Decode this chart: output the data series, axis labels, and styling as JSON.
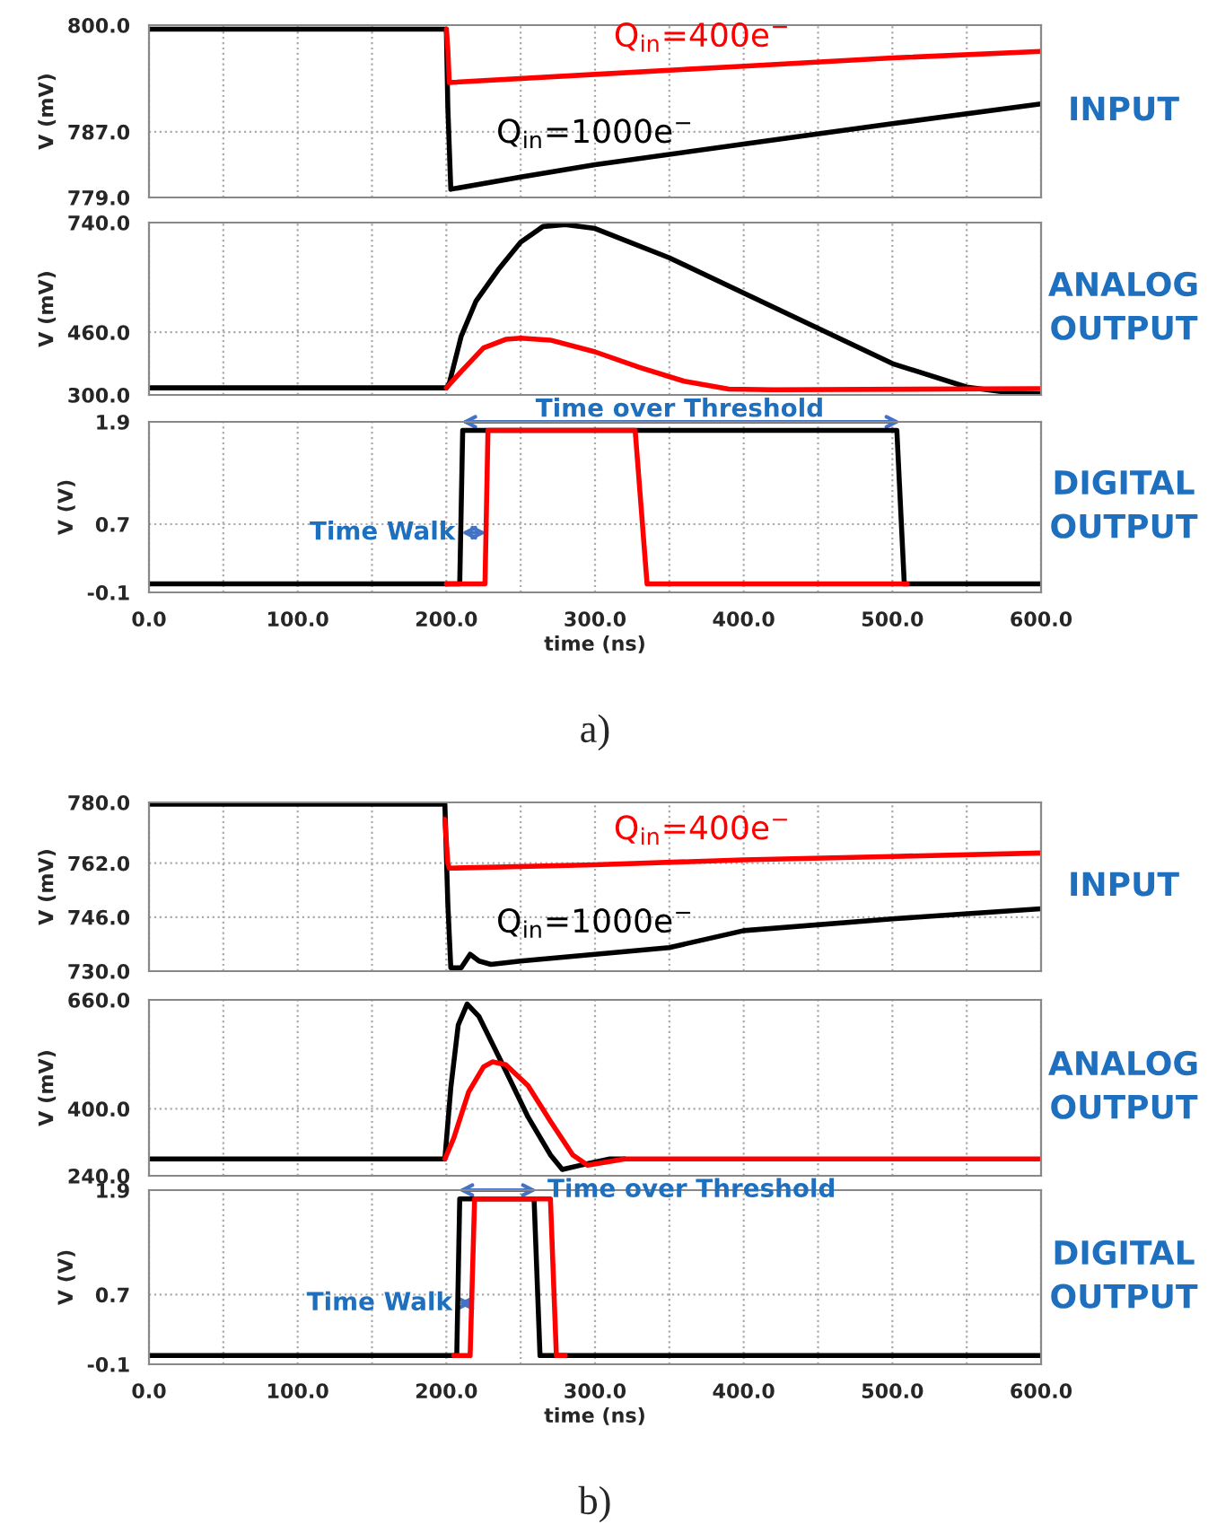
{
  "chart_data": [
    {
      "type": "line",
      "ylabel": "V (mV)",
      "xlim": [
        0,
        600
      ],
      "ylim": [
        779,
        800
      ],
      "tick_labels": "y",
      "grid": true,
      "legend": false,
      "marker": "none",
      "line_style": "solid",
      "xticks": [
        {
          "value": 0,
          "label": null
        },
        {
          "value": 50,
          "label": null
        },
        {
          "value": 100,
          "label": null
        },
        {
          "value": 150,
          "label": null
        },
        {
          "value": 200,
          "label": null
        },
        {
          "value": 250,
          "label": null
        },
        {
          "value": 300,
          "label": null
        },
        {
          "value": 350,
          "label": null
        },
        {
          "value": 400,
          "label": null
        },
        {
          "value": 450,
          "label": null
        },
        {
          "value": 500,
          "label": null
        },
        {
          "value": 550,
          "label": null
        },
        {
          "value": 600,
          "label": null
        }
      ],
      "yticks": [
        {
          "value": 779,
          "label": "779.0"
        },
        {
          "value": 787,
          "label": "787.0"
        },
        {
          "value": 800,
          "label": "800.0"
        }
      ],
      "series": [
        {
          "name": "Q$_{in}$=1000e$^{−}$",
          "color": "#000000",
          "x": [
            0,
            200,
            201,
            203,
            250,
            300,
            400,
            500,
            600
          ],
          "values": [
            799.5,
            799.5,
            790,
            780,
            781.5,
            783,
            785.5,
            788,
            790.4
          ]
        },
        {
          "name": "Q$_{in}$=400e$^{−}$",
          "color": "#ff0000",
          "x": [
            200,
            201,
            202,
            300,
            400,
            500,
            600
          ],
          "values": [
            799.5,
            797,
            793,
            794,
            795,
            796,
            796.8
          ]
        }
      ],
      "annotations": [
        "INPUT"
      ]
    },
    {
      "type": "line",
      "ylabel": "V (mV)",
      "xlim": [
        0,
        600
      ],
      "ylim": [
        300,
        740
      ],
      "tick_labels": "y",
      "grid": true,
      "legend": false,
      "marker": "none",
      "line_style": "solid",
      "xticks": [
        {
          "value": 0,
          "label": null
        },
        {
          "value": 50,
          "label": null
        },
        {
          "value": 100,
          "label": null
        },
        {
          "value": 150,
          "label": null
        },
        {
          "value": 200,
          "label": null
        },
        {
          "value": 250,
          "label": null
        },
        {
          "value": 300,
          "label": null
        },
        {
          "value": 350,
          "label": null
        },
        {
          "value": 400,
          "label": null
        },
        {
          "value": 450,
          "label": null
        },
        {
          "value": 500,
          "label": null
        },
        {
          "value": 550,
          "label": null
        },
        {
          "value": 600,
          "label": null
        }
      ],
      "yticks": [
        {
          "value": 300,
          "label": "300.0"
        },
        {
          "value": 460,
          "label": "460.0"
        },
        {
          "value": 740,
          "label": "740.0"
        }
      ],
      "series": [
        {
          "color": "#000000",
          "x": [
            0,
            200,
            202,
            210,
            220,
            235,
            250,
            265,
            280,
            300,
            350,
            400,
            450,
            500,
            550,
            580,
            600
          ],
          "values": [
            318,
            318,
            330,
            450,
            540,
            620,
            690,
            730,
            735,
            725,
            650,
            560,
            470,
            380,
            320,
            305,
            303
          ]
        },
        {
          "color": "#ff0000",
          "x": [
            200,
            210,
            225,
            240,
            250,
            270,
            300,
            330,
            360,
            390,
            420,
            600
          ],
          "values": [
            318,
            360,
            420,
            442,
            445,
            440,
            410,
            370,
            335,
            315,
            313,
            316
          ]
        }
      ],
      "annotations": [
        "ANALOG\nOUTPUT"
      ]
    },
    {
      "type": "line",
      "ylabel": "V (V)",
      "xlabel": "time (ns)",
      "xlim": [
        0,
        600
      ],
      "ylim": [
        -0.1,
        1.9
      ],
      "grid": true,
      "legend": false,
      "marker": "none",
      "line_style": "solid",
      "xticks": [
        {
          "value": 0,
          "label": "0.0"
        },
        {
          "value": 50,
          "label": null
        },
        {
          "value": 100,
          "label": "100.0"
        },
        {
          "value": 150,
          "label": null
        },
        {
          "value": 200,
          "label": "200.0"
        },
        {
          "value": 250,
          "label": null
        },
        {
          "value": 300,
          "label": "300.0"
        },
        {
          "value": 350,
          "label": null
        },
        {
          "value": 400,
          "label": "400.0"
        },
        {
          "value": 450,
          "label": null
        },
        {
          "value": 500,
          "label": "500.0"
        },
        {
          "value": 550,
          "label": null
        },
        {
          "value": 600,
          "label": "600.0"
        }
      ],
      "yticks": [
        {
          "value": -0.1,
          "label": "-0.1"
        },
        {
          "value": 0.7,
          "label": "0.7"
        },
        {
          "value": 1.9,
          "label": "1.9"
        }
      ],
      "series": [
        {
          "color": "#000000",
          "x": [
            0,
            209,
            211,
            503,
            508,
            600
          ],
          "values": [
            0,
            0,
            1.8,
            1.8,
            0,
            0
          ]
        },
        {
          "color": "#ff0000",
          "x": [
            200,
            226,
            228,
            327,
            335,
            510
          ],
          "values": [
            0,
            0,
            1.8,
            1.8,
            0,
            0
          ]
        }
      ],
      "annotations": [
        "DIGITAL\nOUTPUT",
        "a)",
        {
          "text": "Time over Threshold",
          "x": 357,
          "y": 1.9
        },
        {
          "text": "Time Walk",
          "x": 206,
          "y": 0.6
        }
      ]
    },
    {
      "type": "line",
      "ylabel": "V (mV)",
      "xlim": [
        0,
        600
      ],
      "ylim": [
        730,
        780
      ],
      "tick_labels": "y",
      "grid": true,
      "legend": false,
      "marker": "none",
      "line_style": "solid",
      "xticks": [
        {
          "value": 0,
          "label": null
        },
        {
          "value": 50,
          "label": null
        },
        {
          "value": 100,
          "label": null
        },
        {
          "value": 150,
          "label": null
        },
        {
          "value": 200,
          "label": null
        },
        {
          "value": 250,
          "label": null
        },
        {
          "value": 300,
          "label": null
        },
        {
          "value": 350,
          "label": null
        },
        {
          "value": 400,
          "label": null
        },
        {
          "value": 450,
          "label": null
        },
        {
          "value": 500,
          "label": null
        },
        {
          "value": 550,
          "label": null
        },
        {
          "value": 600,
          "label": null
        }
      ],
      "yticks": [
        {
          "value": 730,
          "label": "730.0"
        },
        {
          "value": 746,
          "label": "746.0"
        },
        {
          "value": 762,
          "label": "762.0"
        },
        {
          "value": 780,
          "label": "780.0"
        }
      ],
      "series": [
        {
          "name": "Q$_{in}$=1000e$^{−}$",
          "color": "#000000",
          "x": [
            0,
            199,
            201,
            203,
            210,
            216,
            222,
            230,
            250,
            300,
            350,
            400,
            500,
            600
          ],
          "values": [
            779.5,
            779.5,
            750,
            731,
            731,
            735,
            733,
            732,
            733,
            735,
            737,
            742,
            745.5,
            748.5
          ]
        },
        {
          "name": "Q$_{in}$=400e$^{−}$",
          "color": "#ff0000",
          "x": [
            199,
            201,
            202,
            300,
            400,
            500,
            600
          ],
          "values": [
            775,
            762,
            760.5,
            761.5,
            763,
            764,
            765
          ]
        }
      ],
      "annotations": [
        "INPUT"
      ]
    },
    {
      "type": "line",
      "ylabel": "V (mV)",
      "xlim": [
        0,
        600
      ],
      "ylim": [
        240,
        660
      ],
      "tick_labels": "y",
      "grid": true,
      "legend": false,
      "marker": "none",
      "line_style": "solid",
      "xticks": [
        {
          "value": 0,
          "label": null
        },
        {
          "value": 50,
          "label": null
        },
        {
          "value": 100,
          "label": null
        },
        {
          "value": 150,
          "label": null
        },
        {
          "value": 200,
          "label": null
        },
        {
          "value": 250,
          "label": null
        },
        {
          "value": 300,
          "label": null
        },
        {
          "value": 350,
          "label": null
        },
        {
          "value": 400,
          "label": null
        },
        {
          "value": 450,
          "label": null
        },
        {
          "value": 500,
          "label": null
        },
        {
          "value": 550,
          "label": null
        },
        {
          "value": 600,
          "label": null
        }
      ],
      "yticks": [
        {
          "value": 240,
          "label": "240.0"
        },
        {
          "value": 400,
          "label": "400.0"
        },
        {
          "value": 660,
          "label": "660.0"
        }
      ],
      "series": [
        {
          "color": "#000000",
          "x": [
            0,
            199,
            203,
            208,
            214,
            222,
            240,
            255,
            270,
            278,
            290,
            310,
            320
          ],
          "values": [
            280,
            280,
            450,
            600,
            650,
            620,
            490,
            380,
            290,
            255,
            265,
            280,
            280
          ]
        },
        {
          "color": "#ff0000",
          "x": [
            199,
            205,
            215,
            225,
            231,
            240,
            255,
            270,
            285,
            295,
            320,
            600
          ],
          "values": [
            280,
            330,
            440,
            500,
            512,
            505,
            455,
            370,
            290,
            265,
            280,
            280
          ]
        }
      ],
      "annotations": [
        "ANALOG\nOUTPUT"
      ]
    },
    {
      "type": "line",
      "ylabel": "V (V)",
      "xlabel": "time (ns)",
      "xlim": [
        0,
        600
      ],
      "ylim": [
        -0.1,
        1.9
      ],
      "grid": true,
      "legend": false,
      "marker": "none",
      "line_style": "solid",
      "xticks": [
        {
          "value": 0,
          "label": "0.0"
        },
        {
          "value": 50,
          "label": null
        },
        {
          "value": 100,
          "label": "100.0"
        },
        {
          "value": 150,
          "label": null
        },
        {
          "value": 200,
          "label": "200.0"
        },
        {
          "value": 250,
          "label": null
        },
        {
          "value": 300,
          "label": "300.0"
        },
        {
          "value": 350,
          "label": null
        },
        {
          "value": 400,
          "label": "400.0"
        },
        {
          "value": 450,
          "label": null
        },
        {
          "value": 500,
          "label": "500.0"
        },
        {
          "value": 550,
          "label": null
        },
        {
          "value": 600,
          "label": "600.0"
        }
      ],
      "yticks": [
        {
          "value": -0.1,
          "label": "-0.1"
        },
        {
          "value": 0.7,
          "label": "0.7"
        },
        {
          "value": 1.9,
          "label": "1.9"
        }
      ],
      "series": [
        {
          "color": "#000000",
          "x": [
            0,
            207,
            209,
            259,
            263,
            600
          ],
          "values": [
            0,
            0,
            1.8,
            1.8,
            0,
            0
          ]
        },
        {
          "color": "#ff0000",
          "x": [
            205,
            216,
            219,
            270,
            274,
            280
          ],
          "values": [
            0,
            0,
            1.8,
            1.8,
            0,
            0
          ]
        }
      ],
      "annotations": [
        "DIGITAL\nOUTPUT",
        "b)",
        {
          "text": "Time over Threshold",
          "x": 268,
          "y": 1.9
        },
        {
          "text": "Time Walk",
          "x": 204,
          "y": 0.6
        }
      ]
    }
  ]
}
